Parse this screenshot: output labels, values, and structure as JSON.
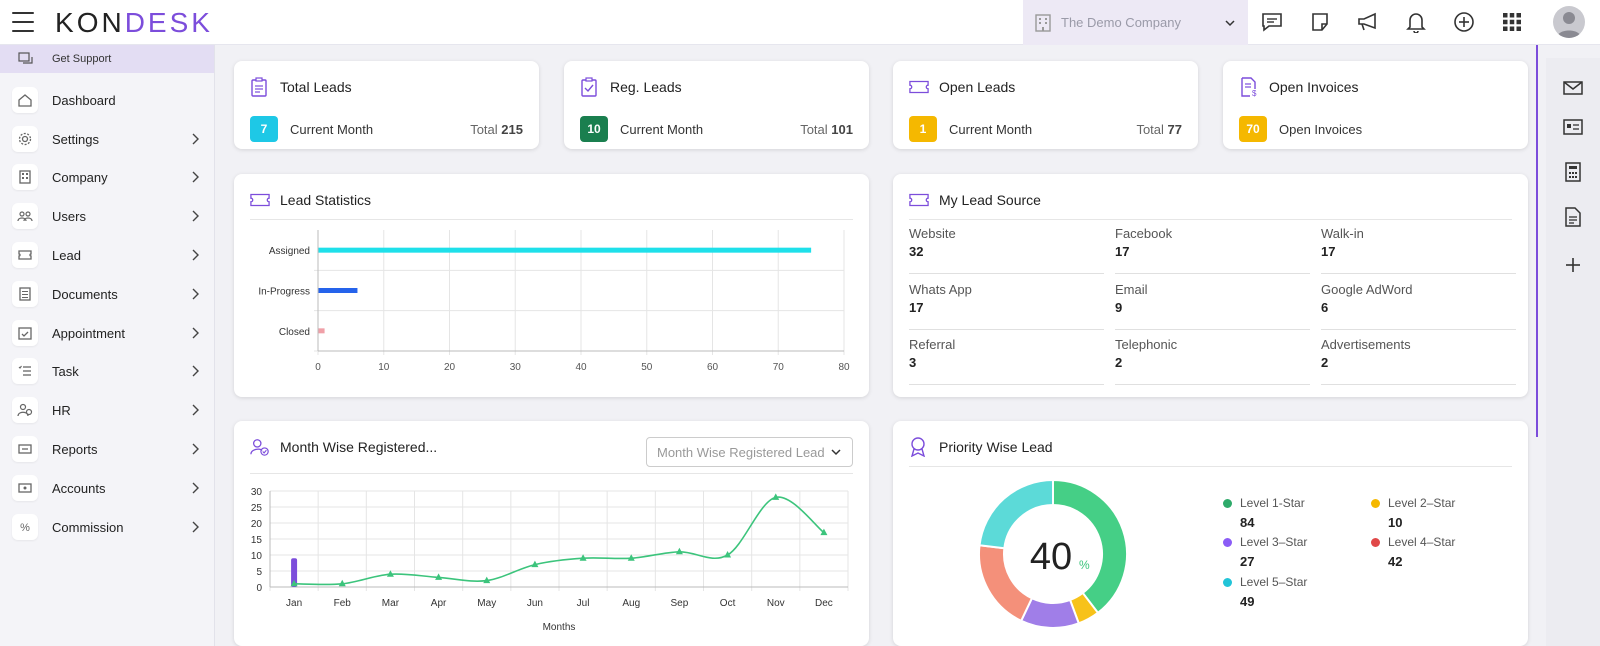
{
  "header": {
    "logo_left": "K",
    "logo_o": "O",
    "logo_n": "N",
    "logo_right": "DESK",
    "company": "The Demo Company"
  },
  "sidebar": {
    "support_label": "Get Support",
    "items": [
      {
        "label": "Dashboard",
        "icon": "home-icon",
        "chevron": false
      },
      {
        "label": "Settings",
        "icon": "gear-icon",
        "chevron": true
      },
      {
        "label": "Company",
        "icon": "building-icon",
        "chevron": true
      },
      {
        "label": "Users",
        "icon": "users-icon",
        "chevron": true
      },
      {
        "label": "Lead",
        "icon": "ticket-icon",
        "chevron": true
      },
      {
        "label": "Documents",
        "icon": "document-icon",
        "chevron": true
      },
      {
        "label": "Appointment",
        "icon": "calendar-icon",
        "chevron": true
      },
      {
        "label": "Task",
        "icon": "task-list-icon",
        "chevron": true
      },
      {
        "label": "HR",
        "icon": "people-icon",
        "chevron": true
      },
      {
        "label": "Reports",
        "icon": "report-icon",
        "chevron": true
      },
      {
        "label": "Accounts",
        "icon": "accounts-icon",
        "chevron": true
      },
      {
        "label": "Commission",
        "icon": "percent-icon",
        "chevron": true
      }
    ]
  },
  "stats": {
    "total_leads": {
      "title": "Total Leads",
      "badge": "7",
      "label": "Current Month",
      "total_prefix": "Total",
      "total": "215",
      "color": "#1ec8e6"
    },
    "reg_leads": {
      "title": "Reg. Leads",
      "badge": "10",
      "label": "Current Month",
      "total_prefix": "Total",
      "total": "101",
      "color": "#1a7f4f"
    },
    "open_leads": {
      "title": "Open Leads",
      "badge": "1",
      "label": "Current Month",
      "total_prefix": "Total",
      "total": "77",
      "color": "#f5b800"
    },
    "open_invoices": {
      "title": "Open Invoices",
      "badge": "70",
      "label": "Open Invoices",
      "color": "#f5b800"
    }
  },
  "lead_statistics": {
    "title": "Lead Statistics"
  },
  "lead_source": {
    "title": "My Lead Source",
    "items": [
      {
        "label": "Website",
        "value": "32"
      },
      {
        "label": "Facebook",
        "value": "17"
      },
      {
        "label": "Walk-in",
        "value": "17"
      },
      {
        "label": "Whats App",
        "value": "17"
      },
      {
        "label": "Email",
        "value": "9"
      },
      {
        "label": "Google AdWord",
        "value": "6"
      },
      {
        "label": "Referral",
        "value": "3"
      },
      {
        "label": "Telephonic",
        "value": "2"
      },
      {
        "label": "Advertisements",
        "value": "2"
      }
    ]
  },
  "month_wise": {
    "title": "Month Wise Registered...",
    "dropdown": "Month Wise Registered Lead"
  },
  "priority": {
    "title": "Priority Wise Lead",
    "center_value": "40",
    "center_unit": "%",
    "legend": [
      {
        "label": "Level 1-Star",
        "value": "84",
        "color": "#2eaa6a"
      },
      {
        "label": "Level 2–Star",
        "value": "10",
        "color": "#f5b800"
      },
      {
        "label": "Level 3–Star",
        "value": "27",
        "color": "#8b5cf6"
      },
      {
        "label": "Level 4–Star",
        "value": "42",
        "color": "#e04848"
      },
      {
        "label": "Level 5–Star",
        "value": "49",
        "color": "#22c4d8"
      }
    ]
  },
  "chart_data": [
    {
      "type": "bar",
      "orientation": "horizontal",
      "categories": [
        "Assigned",
        "In-Progress",
        "Closed"
      ],
      "values": [
        75,
        6,
        1
      ],
      "colors": [
        "#1ee0ea",
        "#2563eb",
        "#f0a0a8"
      ],
      "xlim": [
        0,
        80
      ],
      "xticks": [
        "0",
        "10",
        "20",
        "30",
        "40",
        "50",
        "60",
        "70",
        "80"
      ],
      "grid": true
    },
    {
      "type": "line",
      "categories": [
        "Jan",
        "Feb",
        "Mar",
        "Apr",
        "May",
        "Jun",
        "Jul",
        "Aug",
        "Sep",
        "Oct",
        "Nov",
        "Dec"
      ],
      "series": [
        {
          "values": [
            1,
            1,
            4,
            3,
            2,
            7,
            9,
            9,
            11,
            10,
            28,
            17
          ],
          "color": "#3cc47c"
        }
      ],
      "bar_series": [
        {
          "values": [
            9,
            0,
            0,
            0,
            0,
            0,
            0,
            0,
            0,
            0,
            0,
            0
          ],
          "color": "#7c4ddb"
        }
      ],
      "xlabel": "Months",
      "ylim": [
        0,
        30
      ],
      "yticks": [
        "0",
        "5",
        "10",
        "15",
        "20",
        "25",
        "30"
      ],
      "grid": true
    },
    {
      "type": "pie",
      "donut": true,
      "categories": [
        "Level 1-Star",
        "Level 2–Star",
        "Level 3–Star",
        "Level 4–Star",
        "Level 5–Star"
      ],
      "values": [
        84,
        10,
        27,
        42,
        49
      ],
      "colors": [
        "#45cf86",
        "#f7c21a",
        "#a07ee8",
        "#f4907a",
        "#5cdad8"
      ]
    }
  ]
}
